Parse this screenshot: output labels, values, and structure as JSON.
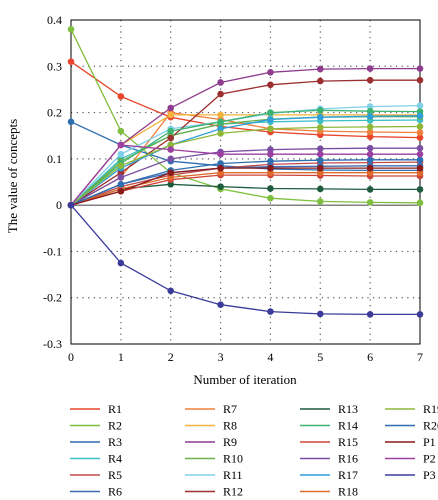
{
  "chart_data": {
    "type": "line",
    "title": "",
    "xlabel": "Number of iteration",
    "ylabel": "The value of concepts",
    "x": [
      0,
      1,
      2,
      3,
      4,
      5,
      6,
      7
    ],
    "xlim": [
      0,
      7
    ],
    "ylim": [
      -0.3,
      0.4
    ],
    "xticks": [
      "0",
      "1",
      "2",
      "3",
      "4",
      "5",
      "6",
      "7"
    ],
    "yticks": [
      "0.4",
      "0.3",
      "0.2",
      "0.1",
      "0",
      "-0.1",
      "-0.2",
      "-0.3"
    ],
    "grid": "dotted",
    "legend_position": "bottom",
    "series": [
      {
        "name": "R1",
        "color": "#e8452c",
        "values": [
          0.31,
          0.235,
          0.19,
          0.17,
          0.158,
          0.152,
          0.148,
          0.146
        ]
      },
      {
        "name": "R2",
        "color": "#7fbf3f",
        "values": [
          0.38,
          0.16,
          0.07,
          0.035,
          0.015,
          0.008,
          0.006,
          0.005
        ]
      },
      {
        "name": "R3",
        "color": "#2e6fb0",
        "values": [
          0.18,
          0.13,
          0.095,
          0.085,
          0.078,
          0.076,
          0.075,
          0.075
        ]
      },
      {
        "name": "R4",
        "color": "#3ec0c8",
        "values": [
          0,
          0.1,
          0.15,
          0.175,
          0.18,
          0.182,
          0.183,
          0.184
        ]
      },
      {
        "name": "R5",
        "color": "#c04b4b",
        "values": [
          0,
          0.04,
          0.065,
          0.08,
          0.088,
          0.091,
          0.092,
          0.093
        ]
      },
      {
        "name": "R6",
        "color": "#3a6db5",
        "values": [
          0,
          0.045,
          0.07,
          0.08,
          0.083,
          0.084,
          0.085,
          0.085
        ]
      },
      {
        "name": "R7",
        "color": "#f07f3c",
        "values": [
          0,
          0.06,
          0.2,
          0.185,
          0.165,
          0.16,
          0.158,
          0.157
        ]
      },
      {
        "name": "R8",
        "color": "#f3b33d",
        "values": [
          0,
          0.13,
          0.195,
          0.195,
          0.195,
          0.195,
          0.195,
          0.195
        ]
      },
      {
        "name": "R9",
        "color": "#8e3c8e",
        "values": [
          0,
          0.13,
          0.21,
          0.265,
          0.287,
          0.294,
          0.295,
          0.295
        ]
      },
      {
        "name": "R10",
        "color": "#6ab04c",
        "values": [
          0,
          0.095,
          0.15,
          0.175,
          0.186,
          0.19,
          0.191,
          0.191
        ]
      },
      {
        "name": "R11",
        "color": "#7fd0e8",
        "values": [
          0,
          0.11,
          0.165,
          0.18,
          0.198,
          0.208,
          0.213,
          0.215
        ]
      },
      {
        "name": "R12",
        "color": "#9c2f2f",
        "values": [
          0,
          0.07,
          0.145,
          0.24,
          0.26,
          0.268,
          0.27,
          0.27
        ]
      },
      {
        "name": "R13",
        "color": "#1f5c3f",
        "values": [
          0,
          0.035,
          0.045,
          0.04,
          0.036,
          0.035,
          0.034,
          0.034
        ]
      },
      {
        "name": "R14",
        "color": "#3cb371",
        "values": [
          0,
          0.09,
          0.16,
          0.18,
          0.2,
          0.205,
          0.203,
          0.202
        ]
      },
      {
        "name": "R15",
        "color": "#d0453a",
        "values": [
          0,
          0.03,
          0.055,
          0.065,
          0.065,
          0.064,
          0.063,
          0.063
        ]
      },
      {
        "name": "R16",
        "color": "#7a4fa3",
        "values": [
          0,
          0.06,
          0.1,
          0.115,
          0.12,
          0.122,
          0.123,
          0.123
        ]
      },
      {
        "name": "R17",
        "color": "#2f9fd8",
        "values": [
          0,
          0.08,
          0.13,
          0.165,
          0.185,
          0.19,
          0.192,
          0.193
        ]
      },
      {
        "name": "R18",
        "color": "#e06a2c",
        "values": [
          0,
          0.035,
          0.06,
          0.07,
          0.07,
          0.07,
          0.07,
          0.07
        ]
      },
      {
        "name": "R19",
        "color": "#8fb83a",
        "values": [
          0,
          0.085,
          0.13,
          0.155,
          0.165,
          0.168,
          0.169,
          0.17
        ]
      },
      {
        "name": "R20",
        "color": "#2f6fb0",
        "values": [
          0,
          0.045,
          0.075,
          0.09,
          0.095,
          0.097,
          0.098,
          0.098
        ]
      },
      {
        "name": "P1",
        "color": "#8b1a1a",
        "values": [
          0,
          0.03,
          0.07,
          0.08,
          0.08,
          0.08,
          0.08,
          0.08
        ]
      },
      {
        "name": "P2",
        "color": "#9b3fa0",
        "values": [
          0,
          0.13,
          0.12,
          0.11,
          0.11,
          0.11,
          0.11,
          0.11
        ]
      },
      {
        "name": "P3",
        "color": "#3b3b9a",
        "values": [
          0,
          -0.125,
          -0.185,
          -0.215,
          -0.23,
          -0.235,
          -0.236,
          -0.236
        ]
      }
    ]
  }
}
